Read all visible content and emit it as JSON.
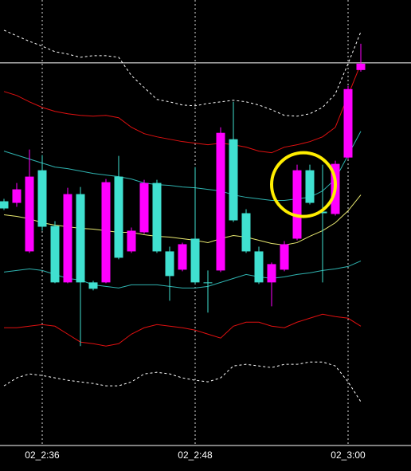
{
  "chart_data": {
    "type": "candlestick",
    "categories": [
      null,
      null,
      null,
      "02_2:36",
      null,
      null,
      null,
      null,
      null,
      null,
      null,
      null,
      null,
      null,
      null,
      "02_2:48",
      null,
      null,
      null,
      null,
      null,
      null,
      null,
      null,
      null,
      null,
      null,
      "02_3:00",
      null
    ],
    "open": [
      307,
      305,
      244,
      346,
      276,
      205,
      316,
      205,
      205,
      338,
      244,
      268,
      330,
      244,
      221,
      260,
      205,
      220,
      385,
      292,
      244,
      205,
      221,
      260,
      346,
      294,
      291,
      362,
      472
    ],
    "high": [
      310,
      330,
      372,
      365,
      282,
      324,
      325,
      207,
      335,
      364,
      274,
      334,
      334,
      250,
      255,
      350,
      220,
      400,
      432,
      297,
      250,
      230,
      257,
      353,
      353,
      353,
      358,
      452,
      505
    ],
    "low": [
      296,
      300,
      242,
      270,
      204,
      204,
      125,
      195,
      204,
      234,
      242,
      266,
      242,
      182,
      219,
      203,
      167,
      218,
      281,
      242,
      203,
      175,
      219,
      258,
      303,
      205,
      289,
      360,
      470
    ],
    "close": [
      298,
      322,
      338,
      275,
      205,
      316,
      205,
      197,
      331,
      236,
      270,
      330,
      244,
      213,
      253,
      205,
      205,
      393,
      283,
      244,
      205,
      228,
      253,
      346,
      305,
      292,
      354,
      448,
      480
    ],
    "up_color": "#ff00ff",
    "down_color": "#40e0d0",
    "series": [
      {
        "color": "#ffffff",
        "dashed": true,
        "values": [
          522,
          515,
          508,
          502,
          495,
          492,
          488,
          490,
          490,
          488,
          465,
          450,
          435,
          432,
          428,
          427,
          430,
          432,
          434,
          432,
          428,
          422,
          415,
          414,
          417,
          425,
          442,
          480,
          520
        ]
      },
      {
        "color": "#e01010",
        "dashed": false,
        "values": [
          445,
          440,
          432,
          425,
          420,
          417,
          415,
          414,
          415,
          412,
          400,
          392,
          388,
          385,
          382,
          380,
          378,
          380,
          378,
          375,
          370,
          368,
          375,
          378,
          382,
          388,
          400,
          440,
          480
        ]
      },
      {
        "color": "#2fb3b0",
        "dashed": false,
        "values": [
          370,
          365,
          360,
          355,
          350,
          348,
          345,
          342,
          340,
          338,
          335,
          330,
          328,
          327,
          325,
          324,
          322,
          320,
          315,
          312,
          310,
          308,
          308,
          310,
          312,
          320,
          335,
          365,
          395
        ]
      },
      {
        "color": "#e8e870",
        "dashed": false,
        "values": [
          290,
          288,
          285,
          280,
          277,
          275,
          273,
          272,
          270,
          268,
          268,
          265,
          263,
          262,
          260,
          258,
          255,
          260,
          264,
          262,
          258,
          254,
          252,
          255,
          263,
          270,
          280,
          295,
          315
        ]
      },
      {
        "color": "#2fb3b0",
        "dashed": false,
        "values": [
          218,
          220,
          222,
          220,
          215,
          210,
          208,
          202,
          200,
          198,
          202,
          202,
          202,
          200,
          198,
          198,
          200,
          205,
          210,
          215,
          212,
          210,
          212,
          215,
          217,
          220,
          222,
          225,
          232
        ]
      },
      {
        "color": "#e01010",
        "dashed": false,
        "values": [
          148,
          148,
          150,
          152,
          150,
          140,
          130,
          128,
          125,
          128,
          140,
          148,
          152,
          150,
          148,
          145,
          140,
          135,
          150,
          155,
          155,
          150,
          148,
          155,
          160,
          165,
          162,
          160,
          150
        ]
      },
      {
        "color": "#ffffff",
        "dashed": true,
        "values": [
          75,
          85,
          90,
          88,
          85,
          82,
          80,
          78,
          75,
          75,
          80,
          90,
          92,
          90,
          85,
          82,
          80,
          85,
          100,
          102,
          100,
          98,
          102,
          102,
          105,
          105,
          100,
          80,
          55
        ]
      }
    ],
    "price_line": 481,
    "ylim": [
      0,
      560
    ],
    "highlight_index": 24,
    "highlight_color": "#ffee00"
  }
}
